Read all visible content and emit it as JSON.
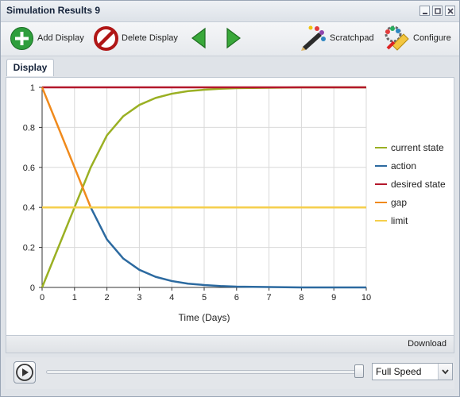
{
  "window": {
    "title": "Simulation Results 9"
  },
  "toolbar": {
    "add_display": "Add Display",
    "delete_display": "Delete Display",
    "scratchpad": "Scratchpad",
    "configure": "Configure"
  },
  "tabs": [
    {
      "label": "Display"
    }
  ],
  "download_label": "Download",
  "player": {
    "speed_selected": "Full Speed"
  },
  "colors": {
    "current_state": "#9ab023",
    "action": "#2c6aa0",
    "desired_state": "#b3172b",
    "gap": "#f08a1c",
    "limit": "#f5cf4c"
  },
  "chart_data": {
    "type": "line",
    "xlabel": "Time (Days)",
    "ylabel": "",
    "xlim": [
      0,
      10
    ],
    "ylim": [
      0,
      1
    ],
    "x_ticks": [
      "0",
      "1",
      "2",
      "3",
      "4",
      "5",
      "6",
      "7",
      "8",
      "9",
      "10"
    ],
    "y_ticks": [
      "0",
      "0.2",
      "0.4",
      "0.6",
      "0.8",
      "1"
    ],
    "grid": true,
    "legend_position": "right",
    "x": [
      0,
      0.5,
      1,
      1.5,
      2,
      2.5,
      3,
      3.5,
      4,
      4.5,
      5,
      5.5,
      6,
      6.5,
      7,
      7.5,
      8,
      8.5,
      9,
      9.5,
      10
    ],
    "series": [
      {
        "name": "current state",
        "values": [
          0,
          0.2,
          0.4,
          0.6,
          0.76,
          0.855,
          0.912,
          0.947,
          0.968,
          0.981,
          0.988,
          0.993,
          0.996,
          0.997,
          0.998,
          0.999,
          1,
          1,
          1,
          1,
          1
        ]
      },
      {
        "name": "action",
        "values": [
          0.4,
          0.4,
          0.4,
          0.4,
          0.24,
          0.145,
          0.088,
          0.053,
          0.032,
          0.019,
          0.012,
          0.007,
          0.004,
          0.003,
          0.002,
          0.001,
          0,
          0,
          0,
          0,
          0
        ]
      },
      {
        "name": "desired state",
        "values": [
          1,
          1,
          1,
          1,
          1,
          1,
          1,
          1,
          1,
          1,
          1,
          1,
          1,
          1,
          1,
          1,
          1,
          1,
          1,
          1,
          1
        ]
      },
      {
        "name": "gap",
        "values": [
          1,
          0.8,
          0.6,
          0.4,
          null,
          null,
          null,
          null,
          null,
          null,
          null,
          null,
          null,
          null,
          null,
          null,
          null,
          null,
          null,
          null,
          null
        ]
      },
      {
        "name": "limit",
        "values": [
          0.4,
          0.4,
          0.4,
          0.4,
          0.4,
          0.4,
          0.4,
          0.4,
          0.4,
          0.4,
          0.4,
          0.4,
          0.4,
          0.4,
          0.4,
          0.4,
          0.4,
          0.4,
          0.4,
          0.4,
          0.4
        ]
      }
    ]
  }
}
